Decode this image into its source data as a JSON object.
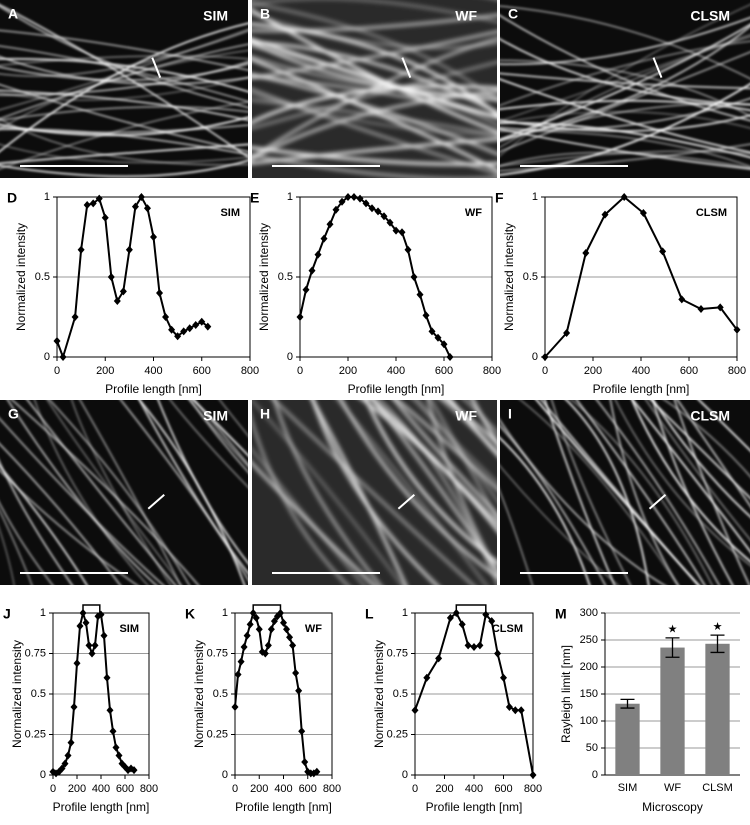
{
  "images": [
    {
      "letter": "A",
      "label": "SIM"
    },
    {
      "letter": "B",
      "label": "WF"
    },
    {
      "letter": "C",
      "label": "CLSM"
    },
    {
      "letter": "G",
      "label": "SIM"
    },
    {
      "letter": "H",
      "label": "WF"
    },
    {
      "letter": "I",
      "label": "CLSM"
    }
  ],
  "chart_data": [
    {
      "type": "line",
      "panel_label": "D",
      "title": "SIM",
      "x_label": "Profile length [nm]",
      "y_label": "Normalized intensity",
      "color": "#000000",
      "x": [
        0,
        25,
        75,
        100,
        125,
        150,
        175,
        200,
        225,
        250,
        275,
        300,
        325,
        350,
        375,
        400,
        425,
        450,
        475,
        500,
        525,
        550,
        575,
        600,
        625
      ],
      "values": [
        0.1,
        0,
        0.25,
        0.67,
        0.95,
        0.96,
        0.99,
        0.87,
        0.5,
        0.35,
        0.41,
        0.67,
        0.94,
        1.0,
        0.93,
        0.75,
        0.4,
        0.25,
        0.17,
        0.13,
        0.16,
        0.18,
        0.2,
        0.22,
        0.19
      ],
      "xlim": [
        0,
        800
      ],
      "xticks": [
        0,
        200,
        400,
        600,
        800
      ],
      "ylim": [
        0,
        1
      ],
      "yticks": [
        0,
        0.5,
        1
      ],
      "grid": true
    },
    {
      "type": "line",
      "panel_label": "E",
      "title": "WF",
      "x_label": "Profile length [nm]",
      "y_label": "Normalized intensity",
      "color": "#000000",
      "x": [
        0,
        25,
        50,
        75,
        100,
        125,
        150,
        175,
        200,
        225,
        250,
        275,
        300,
        325,
        350,
        375,
        400,
        425,
        450,
        475,
        500,
        525,
        550,
        575,
        600,
        625
      ],
      "values": [
        0.25,
        0.42,
        0.54,
        0.64,
        0.74,
        0.83,
        0.92,
        0.97,
        1.0,
        1.0,
        0.99,
        0.96,
        0.93,
        0.91,
        0.88,
        0.84,
        0.79,
        0.78,
        0.67,
        0.5,
        0.39,
        0.26,
        0.16,
        0.12,
        0.08,
        0
      ],
      "xlim": [
        0,
        800
      ],
      "xticks": [
        0,
        200,
        400,
        600,
        800
      ],
      "ylim": [
        0,
        1
      ],
      "yticks": [
        0,
        0.5,
        1
      ],
      "grid": true
    },
    {
      "type": "line",
      "panel_label": "F",
      "title": "CLSM",
      "x_label": "Profile length [nm]",
      "y_label": "Normalized intensity",
      "color": "#000000",
      "x": [
        0,
        90,
        170,
        250,
        330,
        410,
        490,
        570,
        650,
        730,
        800
      ],
      "values": [
        0,
        0.15,
        0.65,
        0.89,
        1.0,
        0.9,
        0.66,
        0.36,
        0.3,
        0.31,
        0.17
      ],
      "xlim": [
        0,
        800
      ],
      "xticks": [
        0,
        200,
        400,
        600,
        800
      ],
      "ylim": [
        0,
        1
      ],
      "yticks": [
        0,
        0.5,
        1
      ],
      "grid": true
    },
    {
      "type": "line",
      "panel_label": "J",
      "title": "SIM",
      "x_label": "Profile length [nm]",
      "y_label": "Normalized intensity",
      "color": "#000000",
      "x": [
        0,
        25,
        50,
        75,
        100,
        125,
        150,
        175,
        200,
        225,
        250,
        275,
        300,
        325,
        350,
        375,
        400,
        425,
        450,
        475,
        500,
        525,
        550,
        575,
        600,
        625,
        650,
        675
      ],
      "values": [
        0.02,
        0.01,
        0.02,
        0.04,
        0.07,
        0.12,
        0.2,
        0.42,
        0.69,
        0.92,
        1.0,
        0.94,
        0.8,
        0.75,
        0.8,
        0.98,
        0.99,
        0.86,
        0.6,
        0.4,
        0.27,
        0.17,
        0.12,
        0.07,
        0.05,
        0.03,
        0.04,
        0.03
      ],
      "xlim": [
        0,
        800
      ],
      "xticks": [
        0,
        200,
        400,
        600,
        800
      ],
      "ylim": [
        0,
        1
      ],
      "yticks": [
        0,
        0.25,
        0.5,
        0.75,
        1
      ],
      "grid": true
    },
    {
      "type": "line",
      "panel_label": "K",
      "title": "WF",
      "x_label": "Profile length [nm]",
      "y_label": "Normalized intensity",
      "color": "#000000",
      "x": [
        0,
        25,
        50,
        75,
        100,
        125,
        150,
        175,
        200,
        225,
        250,
        275,
        300,
        325,
        350,
        375,
        400,
        425,
        450,
        475,
        500,
        525,
        550,
        575,
        600,
        625,
        650,
        675
      ],
      "values": [
        0.42,
        0.62,
        0.7,
        0.79,
        0.86,
        0.93,
        1.0,
        0.97,
        0.9,
        0.76,
        0.75,
        0.8,
        0.9,
        0.95,
        0.98,
        1.0,
        0.94,
        0.9,
        0.85,
        0.8,
        0.63,
        0.52,
        0.27,
        0.08,
        0.02,
        0.01,
        0.01,
        0.02
      ],
      "xlim": [
        0,
        800
      ],
      "xticks": [
        0,
        200,
        400,
        600,
        800
      ],
      "ylim": [
        0,
        1
      ],
      "yticks": [
        0,
        0.25,
        0.5,
        0.75,
        1
      ],
      "grid": true
    },
    {
      "type": "line",
      "panel_label": "L",
      "title": "CLSM",
      "x_label": "Profile length [nm]",
      "y_label": "Normalized intensity",
      "color": "#000000",
      "x": [
        0,
        80,
        160,
        240,
        280,
        320,
        360,
        400,
        440,
        480,
        520,
        560,
        600,
        640,
        680,
        720,
        800
      ],
      "values": [
        0.4,
        0.6,
        0.72,
        0.97,
        1.0,
        0.93,
        0.8,
        0.79,
        0.8,
        0.99,
        0.95,
        0.75,
        0.6,
        0.42,
        0.4,
        0.4,
        0
      ],
      "xlim": [
        0,
        800
      ],
      "xticks": [
        0,
        200,
        400,
        600,
        800
      ],
      "ylim": [
        0,
        1
      ],
      "yticks": [
        0,
        0.25,
        0.5,
        0.75,
        1
      ],
      "grid": true
    },
    {
      "type": "bar",
      "panel_label": "M",
      "x_label": "Microscopy",
      "y_label": "Rayleigh limit [nm]",
      "color": "#808080",
      "categories": [
        "SIM",
        "WF",
        "CLSM"
      ],
      "values": [
        132,
        236,
        243
      ],
      "errors": [
        8,
        18,
        16
      ],
      "significance": [
        null,
        "★",
        "★"
      ],
      "ylim": [
        0,
        300
      ],
      "yticks": [
        0,
        50,
        100,
        150,
        200,
        250,
        300
      ],
      "grid": true
    }
  ]
}
